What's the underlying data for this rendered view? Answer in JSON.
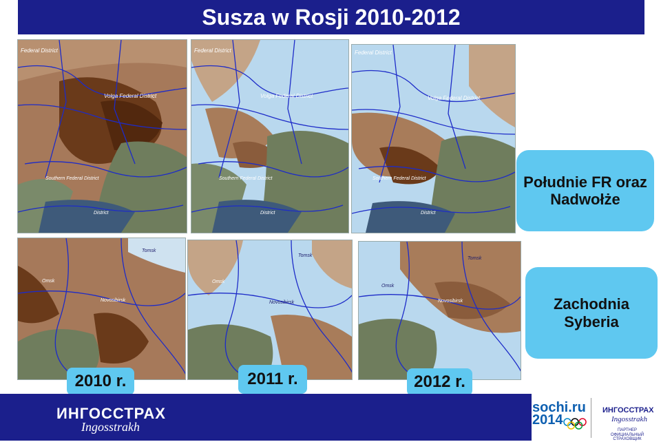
{
  "title": "Susza w Rosji 2010-2012",
  "regions": {
    "south": {
      "line1": "Południe FR oraz",
      "line2": "Nadwołże"
    },
    "siberia": {
      "line1": "Zachodnia",
      "line2": "Syberia"
    }
  },
  "years": [
    "2010 r.",
    "2011 r.",
    "2012 r."
  ],
  "map_labels": {
    "fed_district": "Federal District",
    "volga": "Volga Federal District",
    "southern": "Southern Federal District",
    "district": "District",
    "tomsk": "Tomsk",
    "omsk": "Omsk",
    "novosibirsk": "Novosibirsk"
  },
  "footer": {
    "logo": "ИНГОССТРАХ",
    "logo_sub": "Ingosstrakh",
    "sochi1": "sochi.ru",
    "sochi2": "2014",
    "logo2": "ИНГОССТРАХ",
    "logo2_sub": "Ingosstrakh",
    "partner1": "ПАРТНЕР",
    "partner2": "ОФИЦИАЛЬНЫЙ СТРАХОВЩИК"
  },
  "colors": {
    "header": "#1b1f8c",
    "box": "#5fc8f0",
    "drought_dark": "#6e3f1e",
    "drought_mid": "#a87c5a",
    "wet": "#b9d8ee",
    "land": "#7a8a6a"
  }
}
